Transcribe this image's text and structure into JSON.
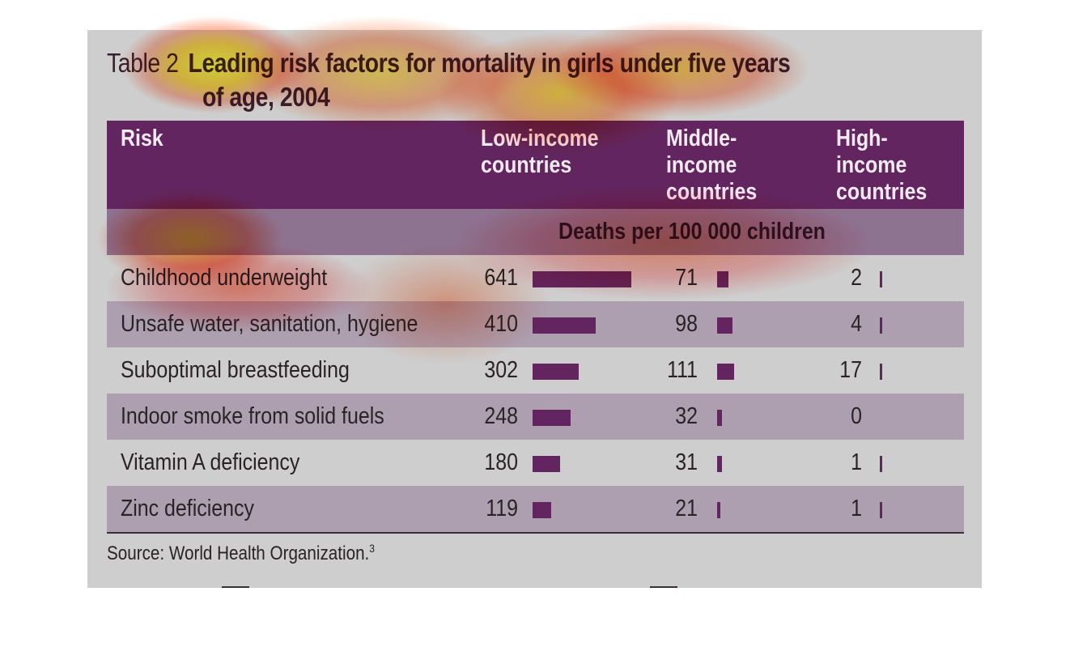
{
  "title": {
    "number": "Table 2",
    "line1": "Leading risk factors for mortality in girls under five years",
    "line2": "of age, 2004"
  },
  "headers": {
    "risk": "Risk",
    "low": "Low-income\ncountries",
    "middle": "Middle-\nincome\ncountries",
    "high": "High-\nincome\ncountries"
  },
  "units": "Deaths per 100 000 children",
  "source": "Source: World Health Organization.",
  "source_ref": "3",
  "colors": {
    "bar": "#63255f",
    "header": "#63255f",
    "panel": "#cecece"
  },
  "chart_data": {
    "type": "table",
    "title": "Leading risk factors for mortality in girls under five years of age, 2004",
    "columns": [
      "Low-income countries",
      "Middle-income countries",
      "High-income countries"
    ],
    "unit": "Deaths per 100 000 children",
    "rows": [
      {
        "risk": "Childhood underweight",
        "values": [
          641,
          71,
          2
        ]
      },
      {
        "risk": "Unsafe water, sanitation, hygiene",
        "values": [
          410,
          98,
          4
        ]
      },
      {
        "risk": "Suboptimal breastfeeding",
        "values": [
          302,
          111,
          17
        ]
      },
      {
        "risk": "Indoor smoke from solid fuels",
        "values": [
          248,
          32,
          0
        ]
      },
      {
        "risk": "Vitamin A deficiency",
        "values": [
          180,
          31,
          1
        ]
      },
      {
        "risk": "Zinc deficiency",
        "values": [
          119,
          21,
          1
        ]
      }
    ]
  }
}
